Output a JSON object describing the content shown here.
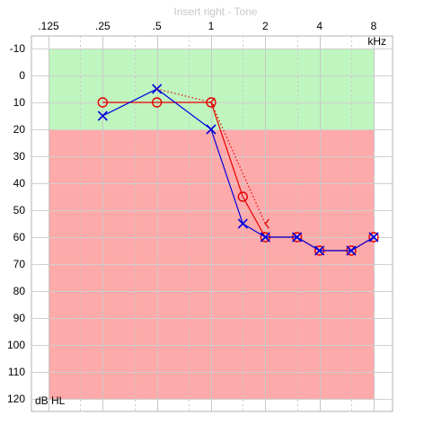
{
  "chart_data": {
    "type": "line",
    "title": "Insert right - Tone",
    "unit_x": "kHz",
    "unit_y": "dB HL",
    "x_ticks": [
      {
        "label": ".125",
        "freq": 0.125
      },
      {
        "label": ".25",
        "freq": 0.25
      },
      {
        "label": ".5",
        "freq": 0.5
      },
      {
        "label": "1",
        "freq": 1
      },
      {
        "label": "2",
        "freq": 2
      },
      {
        "label": "4",
        "freq": 4
      },
      {
        "label": "8",
        "freq": 8
      }
    ],
    "y_ticks": [
      -10,
      0,
      10,
      20,
      30,
      40,
      50,
      60,
      70,
      80,
      90,
      100,
      110,
      120
    ],
    "xlim": [
      0.125,
      8
    ],
    "ylim": [
      -10,
      120
    ],
    "y_inverted": true,
    "x_scale": "log2",
    "grid": true,
    "zones": [
      {
        "y_from": -10,
        "y_to": 20,
        "color": "#bff5bf"
      },
      {
        "y_from": 20,
        "y_to": 120,
        "color": "#ffaaaa"
      }
    ],
    "series": [
      {
        "symbol": "circle",
        "color": "#e60000",
        "style": "solid",
        "points": [
          [
            0.25,
            10
          ],
          [
            0.5,
            10
          ],
          [
            1,
            10
          ],
          [
            1.5,
            45
          ],
          [
            2,
            60
          ],
          [
            3,
            60
          ],
          [
            4,
            65
          ],
          [
            6,
            65
          ],
          [
            8,
            60
          ]
        ]
      },
      {
        "symbol": "cross",
        "color": "#0000dd",
        "style": "solid",
        "points": [
          [
            0.25,
            15
          ],
          [
            0.5,
            5
          ],
          [
            1,
            20
          ],
          [
            1.5,
            55
          ],
          [
            2,
            60
          ],
          [
            3,
            60
          ],
          [
            4,
            65
          ],
          [
            6,
            65
          ],
          [
            8,
            60
          ]
        ]
      },
      {
        "symbol": "bracket",
        "color": "#e60000",
        "style": "dotted",
        "points": [
          [
            0.5,
            5
          ],
          [
            1,
            10
          ],
          [
            2,
            55
          ]
        ]
      }
    ]
  }
}
